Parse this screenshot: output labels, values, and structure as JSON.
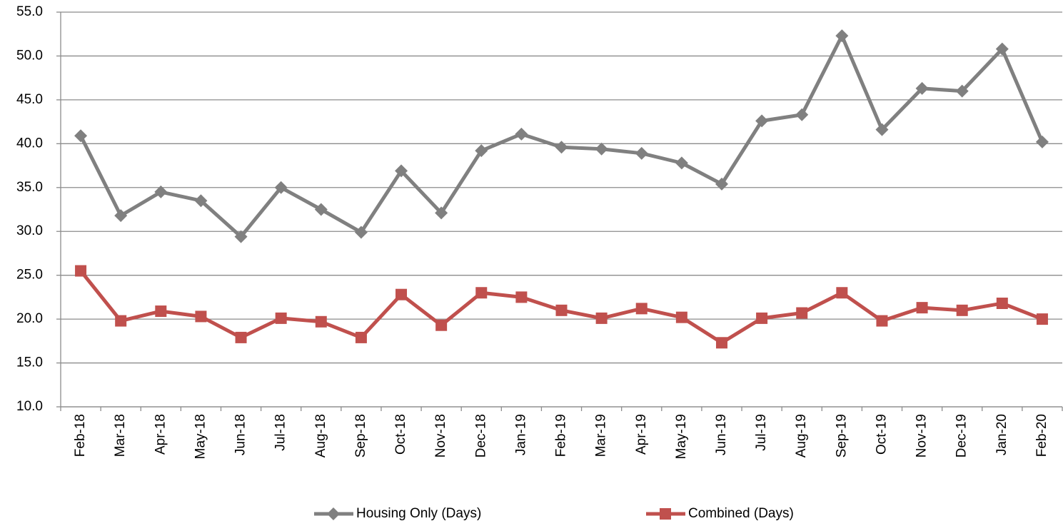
{
  "chart_data": {
    "type": "line",
    "categories": [
      "Feb-18",
      "Mar-18",
      "Apr-18",
      "May-18",
      "Jun-18",
      "Jul-18",
      "Aug-18",
      "Sep-18",
      "Oct-18",
      "Nov-18",
      "Dec-18",
      "Jan-19",
      "Feb-19",
      "Mar-19",
      "Apr-19",
      "May-19",
      "Jun-19",
      "Jul-19",
      "Aug-19",
      "Sep-19",
      "Oct-19",
      "Nov-19",
      "Dec-19",
      "Jan-20",
      "Feb-20"
    ],
    "series": [
      {
        "name": "Housing Only (Days)",
        "color": "#808080",
        "marker": "diamond",
        "values": [
          40.9,
          31.8,
          34.5,
          33.5,
          29.4,
          35.0,
          32.5,
          29.9,
          36.9,
          32.1,
          39.2,
          41.1,
          39.6,
          39.4,
          38.9,
          37.8,
          35.4,
          42.6,
          43.3,
          52.3,
          41.6,
          46.3,
          46.0,
          50.8,
          40.2
        ]
      },
      {
        "name": "Combined (Days)",
        "color": "#c0504d",
        "marker": "square",
        "values": [
          25.5,
          19.8,
          20.9,
          20.3,
          17.9,
          20.1,
          19.7,
          17.9,
          22.8,
          19.3,
          23.0,
          22.5,
          21.0,
          20.1,
          21.2,
          20.2,
          17.3,
          20.1,
          20.7,
          23.0,
          19.8,
          21.3,
          21.0,
          21.8,
          20.0
        ]
      }
    ],
    "ylim": [
      10,
      55
    ],
    "yticks": [
      {
        "value": 10,
        "label": "10.0"
      },
      {
        "value": 15,
        "label": "15.0"
      },
      {
        "value": 20,
        "label": "20.0"
      },
      {
        "value": 25,
        "label": "25.0"
      },
      {
        "value": 30,
        "label": "30.0"
      },
      {
        "value": 35,
        "label": "35.0"
      },
      {
        "value": 40,
        "label": "40.0"
      },
      {
        "value": 45,
        "label": "45.0"
      },
      {
        "value": 50,
        "label": "50.0"
      },
      {
        "value": 55,
        "label": "55.0"
      }
    ],
    "grid": true,
    "legend": "bottom"
  }
}
